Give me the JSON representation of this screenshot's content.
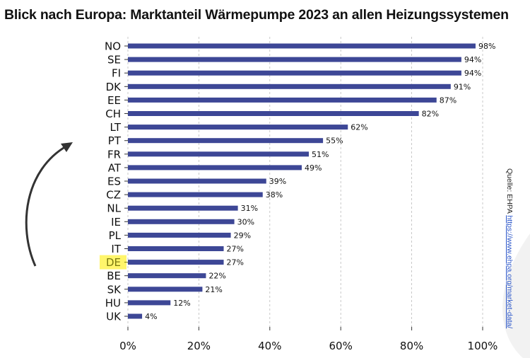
{
  "chart_data": {
    "type": "bar",
    "orientation": "horizontal",
    "title": "Blick nach Europa: Marktanteil Wärmepumpe 2023 an allen Heizungssystemen",
    "categories": [
      "NO",
      "SE",
      "FI",
      "DK",
      "EE",
      "CH",
      "LT",
      "PT",
      "FR",
      "AT",
      "ES",
      "CZ",
      "NL",
      "IE",
      "PL",
      "IT",
      "DE",
      "BE",
      "SK",
      "HU",
      "UK"
    ],
    "values": [
      98,
      94,
      94,
      91,
      87,
      82,
      62,
      55,
      51,
      49,
      39,
      38,
      31,
      30,
      29,
      27,
      27,
      22,
      21,
      12,
      4
    ],
    "data_labels": [
      "98%",
      "94%",
      "94%",
      "91%",
      "87%",
      "82%",
      "62%",
      "55%",
      "51%",
      "49%",
      "39%",
      "38%",
      "31%",
      "30%",
      "29%",
      "27%",
      "27%",
      "22%",
      "21%",
      "12%",
      "4%"
    ],
    "xlim": [
      0,
      100
    ],
    "x_ticks": [
      "0%",
      "20%",
      "40%",
      "60%",
      "80%",
      "100%"
    ],
    "xlabel": "",
    "ylabel": "",
    "grid": "vertical dashed",
    "highlight": "DE",
    "colors": {
      "bar": "#3d4796",
      "highlight": "#fff56b",
      "highlight_text": "#7a7a10",
      "arrow": "#333333"
    }
  },
  "source": {
    "label": "Quelle: EHPA",
    "link": "https://www.ehpa.org/market-data/"
  }
}
